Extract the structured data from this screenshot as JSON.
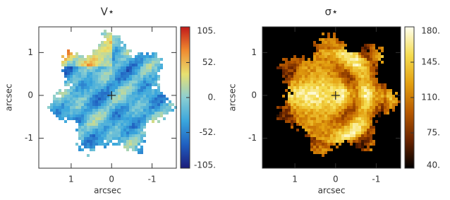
{
  "chart_data": [
    {
      "type": "image",
      "title": "V⋆",
      "xlabel": "arcsec",
      "ylabel": "arcsec",
      "xlim": [
        1.8,
        -1.6
      ],
      "xticks": [
        1,
        0,
        -1
      ],
      "ylim": [
        -1.7,
        1.6
      ],
      "yticks": [
        -1,
        0,
        1
      ],
      "background": "#ffffff",
      "colormap": [
        "#1c1c7a",
        "#1f5fc0",
        "#3aa6dd",
        "#8ccfd2",
        "#e8e070",
        "#ef8a30",
        "#c21a1a"
      ],
      "clim": [
        -105,
        105
      ],
      "cticks": [
        {
          "value": 105,
          "label": "105."
        },
        {
          "value": 52,
          "label": "52."
        },
        {
          "value": 0,
          "label": "0."
        },
        {
          "value": -52,
          "label": "-52."
        },
        {
          "value": -105,
          "label": "-105."
        }
      ]
    },
    {
      "type": "image",
      "title": "σ⋆",
      "xlabel": "arcsec",
      "ylabel": "arcsec",
      "xlim": [
        1.8,
        -1.6
      ],
      "xticks": [
        1,
        0,
        -1
      ],
      "ylim": [
        -1.7,
        1.6
      ],
      "yticks": [
        -1,
        0,
        1
      ],
      "background": "#000000",
      "colormap": [
        "#000000",
        "#6a2400",
        "#b85a00",
        "#e3a010",
        "#f5dc50",
        "#fffff0"
      ],
      "clim": [
        40,
        180
      ],
      "cticks": [
        {
          "value": 180,
          "label": "180."
        },
        {
          "value": 145,
          "label": "145."
        },
        {
          "value": 110,
          "label": "110."
        },
        {
          "value": 75,
          "label": "75."
        },
        {
          "value": 40,
          "label": "40."
        }
      ]
    }
  ]
}
